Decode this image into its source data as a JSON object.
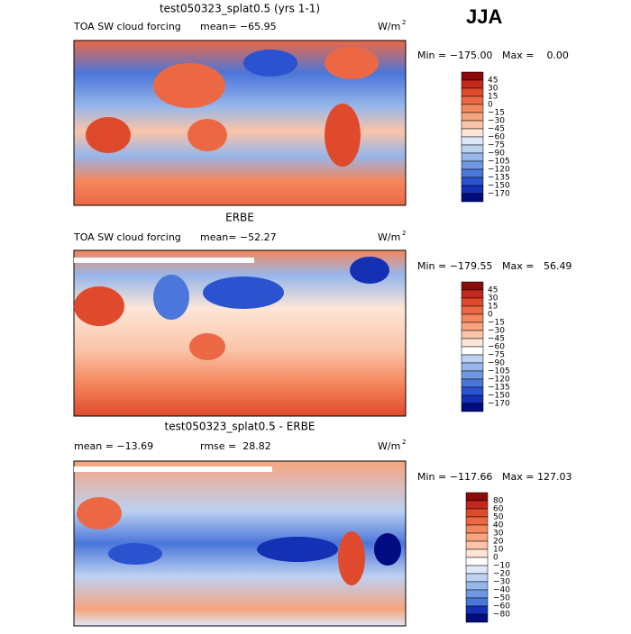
{
  "header": {
    "season": "JJA"
  },
  "panels": [
    {
      "title": "test050323_splat0.5 (yrs 1-1)",
      "field": "TOA SW cloud forcing",
      "stat1": "mean= −65.95",
      "units": {
        "base": "W/m",
        "sup": "2"
      },
      "min": "Min = −175.00",
      "max": "Max =    0.00",
      "levels": [
        "45",
        "30",
        "15",
        "0",
        "−15",
        "−30",
        "−45",
        "−60",
        "−75",
        "−90",
        "−105",
        "−120",
        "−135",
        "−150",
        "−170"
      ],
      "colors": [
        "#8b0a0a",
        "#c4281c",
        "#e04a2c",
        "#ec6845",
        "#f4875e",
        "#f7a47f",
        "#fac4a8",
        "#fde6d8",
        "#dde8f8",
        "#bdd1f1",
        "#97b6ea",
        "#6f97e2",
        "#4b76da",
        "#2b53cf",
        "#1430b5",
        "#000c7f"
      ]
    },
    {
      "title": "ERBE",
      "field": "TOA SW cloud forcing",
      "stat1": "mean= −52.27",
      "units": {
        "base": "W/m",
        "sup": "2"
      },
      "min": "Min = −179.55",
      "max": "Max =   56.49",
      "levels": [
        "45",
        "30",
        "15",
        "0",
        "−15",
        "−30",
        "−45",
        "−60",
        "−75",
        "−90",
        "−105",
        "−120",
        "−135",
        "−150",
        "−170"
      ],
      "colors": [
        "#8b0a0a",
        "#c4281c",
        "#e04a2c",
        "#ec6845",
        "#f4875e",
        "#f7a47f",
        "#fac4a8",
        "#fde6d8",
        "#ffffff",
        "#bdd1f1",
        "#97b6ea",
        "#6f97e2",
        "#4b76da",
        "#2b53cf",
        "#1430b5",
        "#000c7f"
      ]
    },
    {
      "title": "test050323_splat0.5 - ERBE",
      "stat1": "mean = −13.69",
      "stat2": "rmse =  28.82",
      "units": {
        "base": "W/m",
        "sup": "2"
      },
      "min": "Min = −117.66",
      "max": "Max = 127.03",
      "levels": [
        "80",
        "60",
        "50",
        "40",
        "30",
        "20",
        "10",
        "0",
        "−10",
        "−20",
        "−30",
        "−40",
        "−50",
        "−60",
        "−80"
      ],
      "colors": [
        "#8b0a0a",
        "#c4281c",
        "#e04a2c",
        "#ec6845",
        "#f4875e",
        "#f7a47f",
        "#fac4a8",
        "#fde6d8",
        "#ffffff",
        "#dde8f8",
        "#bdd1f1",
        "#97b6ea",
        "#6f97e2",
        "#4b76da",
        "#1430b5",
        "#000c7f"
      ]
    }
  ]
}
